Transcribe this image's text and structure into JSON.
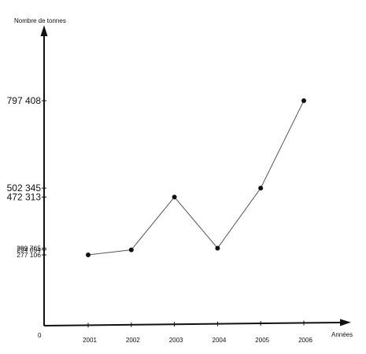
{
  "chart_data": {
    "type": "line",
    "title": "",
    "ylabel": "Nombre de tonnes",
    "xlabel": "Années",
    "origin_label": "0",
    "categories": [
      "2001",
      "2002",
      "2003",
      "2004",
      "2005",
      "2006"
    ],
    "values": [
      277106,
      294054,
      472313,
      299765,
      502345,
      797408
    ],
    "yticks": [
      {
        "label": "797 408",
        "value": 797408,
        "size": "large"
      },
      {
        "label": "502 345",
        "value": 502345,
        "size": "large"
      },
      {
        "label": "472 313",
        "value": 472313,
        "size": "large"
      },
      {
        "label": "299 765",
        "value": 299765,
        "size": "small"
      },
      {
        "label": "294 054",
        "value": 294054,
        "size": "small"
      },
      {
        "label": "277 106",
        "value": 277106,
        "size": "small"
      }
    ],
    "grid": false,
    "colors": {
      "line": "#555555",
      "point": "#111111",
      "axis": "#111111"
    }
  }
}
